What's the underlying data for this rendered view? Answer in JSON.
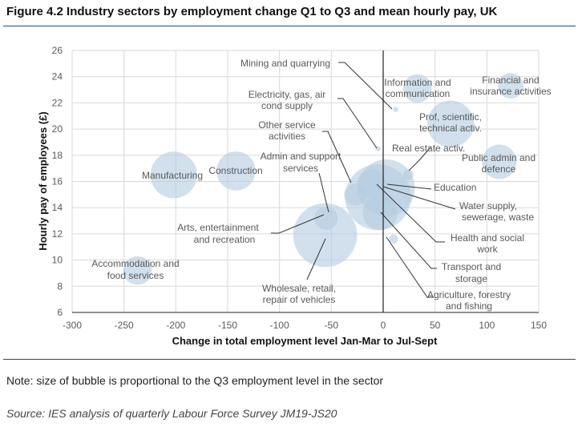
{
  "title": "Figure 4.2 Industry sectors by employment change Q1 to Q3 and mean hourly pay, UK",
  "note": "Note: size of bubble is proportional to the Q3 employment level in the sector",
  "source": "Source: IES analysis of quarterly Labour Force Survey JM19-JS20",
  "colors": {
    "bubble_fill": "#b4cde0",
    "bubble_dark": "#8eb3d0",
    "grid": "#d9d9d9",
    "axis": "#222222",
    "leader": "#333333",
    "label": "#595959",
    "rule": "#1f4e79"
  },
  "chart_data": {
    "type": "scatter",
    "subtype": "bubble",
    "xlabel": "Change in total employment level Jan-Mar to Jul-Sept",
    "ylabel": "Hourly pay of employees (£)",
    "xlim": [
      -300,
      150
    ],
    "ylim": [
      6,
      26
    ],
    "xticks": [
      "-300",
      "-250",
      "-200",
      "-150",
      "-100",
      "-50",
      "0",
      "50",
      "100",
      "150"
    ],
    "yticks": [
      "6",
      "8",
      "10",
      "12",
      "14",
      "16",
      "18",
      "20",
      "22",
      "24",
      "26"
    ],
    "grid": true,
    "points": [
      {
        "label": "Mining and quarrying",
        "x": 12,
        "y": 21.5,
        "size": 0.5
      },
      {
        "label": "Information and communication",
        "x": 33,
        "y": 23.1,
        "size": 15
      },
      {
        "label": "Financial and insurance activities",
        "x": 123,
        "y": 23.3,
        "size": 12
      },
      {
        "label": "Electricity, gas, air cond supply",
        "x": -5,
        "y": 18.5,
        "size": 0.5
      },
      {
        "label": "Prof, scientific, technical activ.",
        "x": 65,
        "y": 20.4,
        "size": 40
      },
      {
        "label": "Real estate activ.",
        "x": 24,
        "y": 16.5,
        "size": 2
      },
      {
        "label": "Public admin and defence",
        "x": 112,
        "y": 17.5,
        "size": 22
      },
      {
        "label": "Manufacturing",
        "x": -202,
        "y": 16.5,
        "size": 40
      },
      {
        "label": "Construction",
        "x": -142,
        "y": 16.8,
        "size": 28
      },
      {
        "label": "Other service activities",
        "x": -27,
        "y": 15,
        "size": 9
      },
      {
        "label": "Admin and support services",
        "x": -11,
        "y": 15.8,
        "size": 16
      },
      {
        "label": "Education",
        "x": 3,
        "y": 15.5,
        "size": 60
      },
      {
        "label": "Water supply, sewerage, waste",
        "x": 3,
        "y": 14.5,
        "size": 1.5
      },
      {
        "label": "Health and social work",
        "x": -5,
        "y": 14.8,
        "size": 80
      },
      {
        "label": "Transport and storage",
        "x": -3,
        "y": 13.6,
        "size": 22
      },
      {
        "label": "Agriculture, forestry and fishing",
        "x": 10,
        "y": 11.6,
        "size": 1.5
      },
      {
        "label": "Arts, entertainment and recreation",
        "x": -55,
        "y": 13.2,
        "size": 10
      },
      {
        "label": "Wholesale, retail, repair of vehicles",
        "x": -56,
        "y": 11.9,
        "size": 75
      },
      {
        "label": "Accommodation and food services",
        "x": -237,
        "y": 9.2,
        "size": 15
      }
    ]
  }
}
